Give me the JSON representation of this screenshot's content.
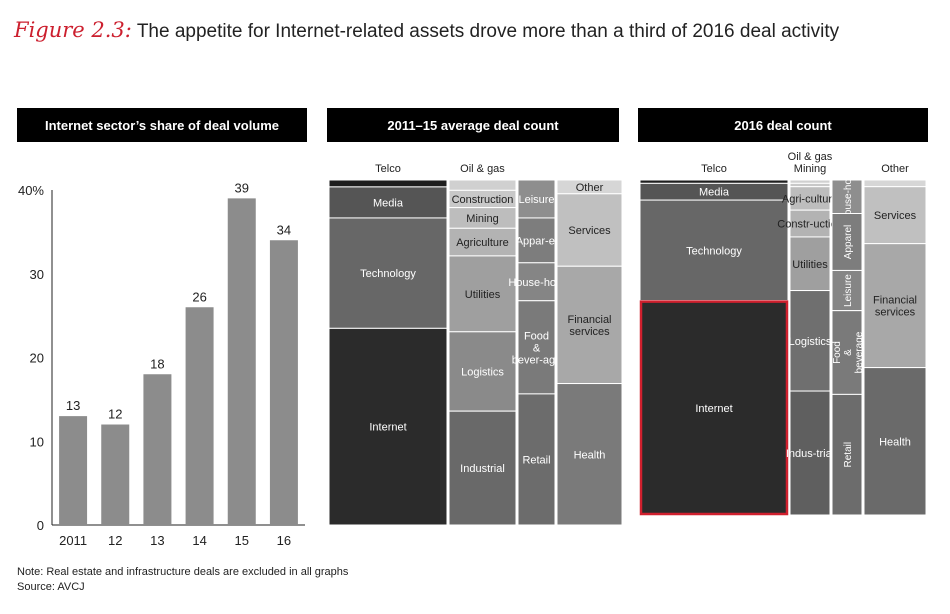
{
  "figure": {
    "label": "Figure 2.3:",
    "title": "The appetite for Internet-related assets drove more than a third of 2016 deal activity"
  },
  "panels": {
    "left_title": "Internet sector’s share of deal volume",
    "middle_title": "2011–15 average deal count",
    "right_title": "2016 deal count"
  },
  "footer": {
    "note": "Note: Real estate and infrastructure deals are excluded in all graphs",
    "source": "Source: AVCJ"
  },
  "colors": {
    "bar": "#8c8c8c",
    "internet": "#2b2b2b",
    "highlight": "#d0202e",
    "text_light": "#ffffff",
    "text_dark": "#222222"
  },
  "chart_data": [
    {
      "type": "bar",
      "categories": [
        "2011",
        "12",
        "13",
        "14",
        "15",
        "16"
      ],
      "values": [
        13,
        12,
        18,
        26,
        39,
        34
      ],
      "yticks": [
        "0",
        "10",
        "20",
        "30",
        "40%"
      ],
      "ylim": [
        0,
        40
      ],
      "grid": false
    },
    {
      "type": "mekko",
      "columns": [
        {
          "segments": [
            {
              "label": "Telco",
              "value": 2,
              "color": "#1e1e1e",
              "outside": true
            },
            {
              "label": "Media",
              "value": 9,
              "color": "#555555"
            },
            {
              "label": "Technology",
              "value": 32,
              "color": "#676767"
            },
            {
              "label": "Internet",
              "value": 57,
              "color": "#2b2b2b"
            }
          ]
        },
        {
          "segments": [
            {
              "label": "Oil & gas",
              "value": 3,
              "color": "#d0d0d0",
              "outside": true
            },
            {
              "label": "Construction",
              "value": 5,
              "color": "#c8c8c8"
            },
            {
              "label": "Mining",
              "value": 6,
              "color": "#bdbdbd"
            },
            {
              "label": "Agriculture",
              "value": 8,
              "color": "#b3b3b3"
            },
            {
              "label": "Utilities",
              "value": 22,
              "color": "#9f9f9f"
            },
            {
              "label": "Logistics",
              "value": 23,
              "color": "#8a8a8a"
            },
            {
              "label": "Industrial",
              "value": 33,
              "color": "#696969"
            }
          ]
        },
        {
          "segments": [
            {
              "label": "Leisure",
              "value": 11,
              "color": "#8e8e8e"
            },
            {
              "label": "Appar-el",
              "value": 13,
              "color": "#7d7d7d"
            },
            {
              "label": "House-hold",
              "value": 11,
              "color": "#858585"
            },
            {
              "label": "Food & bever-age",
              "value": 27,
              "color": "#7a7a7a"
            },
            {
              "label": "Retail",
              "value": 38,
              "color": "#6c6c6c"
            }
          ]
        },
        {
          "segments": [
            {
              "label": "Other",
              "value": 4,
              "color": "#d6d6d6"
            },
            {
              "label": "Services",
              "value": 21,
              "color": "#c0c0c0"
            },
            {
              "label": "Financial services",
              "value": 34,
              "color": "#a8a8a8"
            },
            {
              "label": "Health",
              "value": 41,
              "color": "#7a7a7a"
            }
          ]
        }
      ]
    },
    {
      "type": "mekko",
      "columns": [
        {
          "segments": [
            {
              "label": "Telco",
              "value": 1,
              "color": "#1e1e1e",
              "outside": true
            },
            {
              "label": "Media",
              "value": 5,
              "color": "#555555"
            },
            {
              "label": "Technology",
              "value": 30,
              "color": "#676767"
            },
            {
              "label": "Internet",
              "value": 64,
              "color": "#2b2b2b",
              "highlight": true
            }
          ]
        },
        {
          "segments": [
            {
              "label": "Oil & gas",
              "value": 1,
              "color": "#d0d0d0",
              "outside": true
            },
            {
              "label": "Mining",
              "value": 1,
              "color": "#c8c8c8",
              "outside": true
            },
            {
              "label": "Agri-culture",
              "value": 7,
              "color": "#bdbdbd"
            },
            {
              "label": "Constr-uction",
              "value": 8,
              "color": "#b3b3b3"
            },
            {
              "label": "Utilities",
              "value": 16,
              "color": "#9f9f9f"
            },
            {
              "label": "Logistics",
              "value": 30,
              "color": "#6f6f6f"
            },
            {
              "label": "Indus-trial",
              "value": 37,
              "color": "#5f5f5f"
            }
          ]
        },
        {
          "segments": [
            {
              "label": "House-hold",
              "value": 10,
              "color": "#8e8e8e",
              "vertical": true
            },
            {
              "label": "Apparel",
              "value": 17,
              "color": "#7d7d7d",
              "vertical": true
            },
            {
              "label": "Leisure",
              "value": 12,
              "color": "#858585",
              "vertical": true
            },
            {
              "label": "Food & beverage",
              "value": 25,
              "color": "#7a7a7a",
              "vertical": true
            },
            {
              "label": "Retail",
              "value": 36,
              "color": "#6c6c6c",
              "vertical": true
            }
          ]
        },
        {
          "segments": [
            {
              "label": "Other",
              "value": 2,
              "color": "#d6d6d6",
              "outside": true
            },
            {
              "label": "Services",
              "value": 17,
              "color": "#c0c0c0"
            },
            {
              "label": "Financial services",
              "value": 37,
              "color": "#a8a8a8"
            },
            {
              "label": "Health",
              "value": 44,
              "color": "#6a6a6a"
            }
          ]
        }
      ]
    }
  ]
}
